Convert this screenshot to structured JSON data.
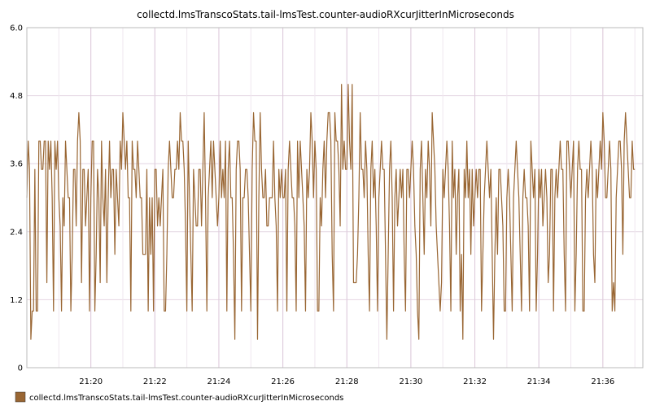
{
  "chart_data": {
    "type": "line",
    "title": "collectd.lmsTranscoStats.tail-lmsTest.counter-audioRXcurJitterInMicroseconds",
    "xlabel": "",
    "ylabel": "",
    "x_start": "21:18:00",
    "x_end": "21:37:15",
    "x_ticks": [
      "21:20",
      "21:22",
      "21:24",
      "21:26",
      "21:28",
      "21:30",
      "21:32",
      "21:34",
      "21:36"
    ],
    "y_ticks": [
      "0",
      "1.2",
      "2.4",
      "3.6",
      "4.8",
      "6.0"
    ],
    "ylim": [
      0,
      6
    ],
    "grid": true,
    "legend": "bottom-left",
    "series": [
      {
        "name": "collectd.lmsTranscoStats.tail-lmsTest.counter-audioRXcurJitterInMicroseconds",
        "color": "#996633",
        "interval_seconds": 2.5,
        "values": [
          3.0,
          4.0,
          3.5,
          0.5,
          1.0,
          1.0,
          3.5,
          1.0,
          1.0,
          4.0,
          4.0,
          3.5,
          3.5,
          4.0,
          4.0,
          1.5,
          4.0,
          3.5,
          4.0,
          3.0,
          1.0,
          4.0,
          3.5,
          4.0,
          3.0,
          2.5,
          1.0,
          3.0,
          2.5,
          4.0,
          3.5,
          3.0,
          3.0,
          1.0,
          2.0,
          3.5,
          3.5,
          2.5,
          4.0,
          4.5,
          4.0,
          1.5,
          3.5,
          3.5,
          2.5,
          3.0,
          3.5,
          1.0,
          3.0,
          4.0,
          4.0,
          1.0,
          2.0,
          3.5,
          3.0,
          1.5,
          4.0,
          3.0,
          2.5,
          3.5,
          1.5,
          3.0,
          4.0,
          3.0,
          3.5,
          3.5,
          2.0,
          3.5,
          3.0,
          2.5,
          4.0,
          3.5,
          4.5,
          4.0,
          3.5,
          4.0,
          3.0,
          3.0,
          1.0,
          4.0,
          3.5,
          3.5,
          3.0,
          4.0,
          3.5,
          3.0,
          3.0,
          2.0,
          2.0,
          2.0,
          3.5,
          1.0,
          3.0,
          2.0,
          3.0,
          1.0,
          3.5,
          3.5,
          2.5,
          3.0,
          2.5,
          3.0,
          3.5,
          1.0,
          1.0,
          2.0,
          3.5,
          4.0,
          3.5,
          3.0,
          3.0,
          3.5,
          3.5,
          4.0,
          3.5,
          4.5,
          4.0,
          4.0,
          3.5,
          2.5,
          1.0,
          4.0,
          3.0,
          2.0,
          1.0,
          3.5,
          3.0,
          2.5,
          2.5,
          3.5,
          3.5,
          2.5,
          3.5,
          4.5,
          3.0,
          1.0,
          3.0,
          3.5,
          4.0,
          3.0,
          4.0,
          3.5,
          3.0,
          2.5,
          3.0,
          4.0,
          3.0,
          3.5,
          3.0,
          4.0,
          1.0,
          3.5,
          4.0,
          3.0,
          3.0,
          2.0,
          0.5,
          3.5,
          4.0,
          4.0,
          3.5,
          1.0,
          3.0,
          3.0,
          3.5,
          3.5,
          3.0,
          2.0,
          1.0,
          3.5,
          4.5,
          4.0,
          4.0,
          0.5,
          3.0,
          4.5,
          3.5,
          3.0,
          3.0,
          3.5,
          2.5,
          2.5,
          3.0,
          3.0,
          3.0,
          4.0,
          3.0,
          2.5,
          1.0,
          3.5,
          3.0,
          3.5,
          3.0,
          3.0,
          3.5,
          1.0,
          3.5,
          4.0,
          3.5,
          3.0,
          3.0,
          2.5,
          1.0,
          4.0,
          3.0,
          4.0,
          3.5,
          3.0,
          2.5,
          1.0,
          3.5,
          3.0,
          3.5,
          4.5,
          4.0,
          3.0,
          4.0,
          3.5,
          1.0,
          1.0,
          3.0,
          2.5,
          3.5,
          4.0,
          3.0,
          4.0,
          4.5,
          4.5,
          4.0,
          2.0,
          1.0,
          4.5,
          4.0,
          4.0,
          3.5,
          2.5,
          5.0,
          3.5,
          4.0,
          3.5,
          3.5,
          5.0,
          4.0,
          3.5,
          5.0,
          1.5,
          1.5,
          1.5,
          2.0,
          3.0,
          4.5,
          3.5,
          3.5,
          3.0,
          4.0,
          3.5,
          2.0,
          1.0,
          3.5,
          4.0,
          3.0,
          3.5,
          2.5,
          1.0,
          3.0,
          3.5,
          4.0,
          3.5,
          3.5,
          2.0,
          0.5,
          2.0,
          3.5,
          4.0,
          3.0,
          1.0,
          3.0,
          3.5,
          2.5,
          3.0,
          3.5,
          3.0,
          3.5,
          2.0,
          1.0,
          3.5,
          3.5,
          3.0,
          3.5,
          4.0,
          3.5,
          2.5,
          2.0,
          1.0,
          0.5,
          3.5,
          4.0,
          3.0,
          2.0,
          3.5,
          3.0,
          4.0,
          3.5,
          2.5,
          4.5,
          4.0,
          3.5,
          2.5,
          2.0,
          1.5,
          1.0,
          1.5,
          3.5,
          3.0,
          3.5,
          4.0,
          3.5,
          2.5,
          1.0,
          4.0,
          3.0,
          3.5,
          2.0,
          3.0,
          3.5,
          1.0,
          2.0,
          0.5,
          3.5,
          3.0,
          4.0,
          3.0,
          3.5,
          2.0,
          3.5,
          2.5,
          3.0,
          3.5,
          3.0,
          3.5,
          3.5,
          1.0,
          2.0,
          3.0,
          3.5,
          4.0,
          3.5,
          3.0,
          3.5,
          2.0,
          0.5,
          2.0,
          3.0,
          2.0,
          3.5,
          3.5,
          3.0,
          2.5,
          1.0,
          1.0,
          3.0,
          3.5,
          3.0,
          2.0,
          1.0,
          3.0,
          3.5,
          4.0,
          3.5,
          3.0,
          2.0,
          1.0,
          3.0,
          3.5,
          3.0,
          3.0,
          2.5,
          1.0,
          4.0,
          3.5,
          3.0,
          3.5,
          1.0,
          2.0,
          3.5,
          3.0,
          3.5,
          2.5,
          3.0,
          3.5,
          3.0,
          1.5,
          2.0,
          3.5,
          3.5,
          1.0,
          3.0,
          3.5,
          3.0,
          3.5,
          4.0,
          3.5,
          3.5,
          2.0,
          1.0,
          4.0,
          4.0,
          3.5,
          3.0,
          3.5,
          4.0,
          1.0,
          2.0,
          3.5,
          4.0,
          3.5,
          3.5,
          1.0,
          1.0,
          3.0,
          3.5,
          3.0,
          3.5,
          4.0,
          3.5,
          2.0,
          1.5,
          3.5,
          3.0,
          3.5,
          4.0,
          3.5,
          4.5,
          4.0,
          3.0,
          3.0,
          3.5,
          4.0,
          3.5,
          1.0,
          1.5,
          1.0,
          3.0,
          3.5,
          4.0,
          4.0,
          3.5,
          2.0,
          4.0,
          4.5,
          4.0,
          3.5,
          3.0,
          3.0,
          4.0,
          3.5,
          3.5
        ]
      }
    ]
  }
}
